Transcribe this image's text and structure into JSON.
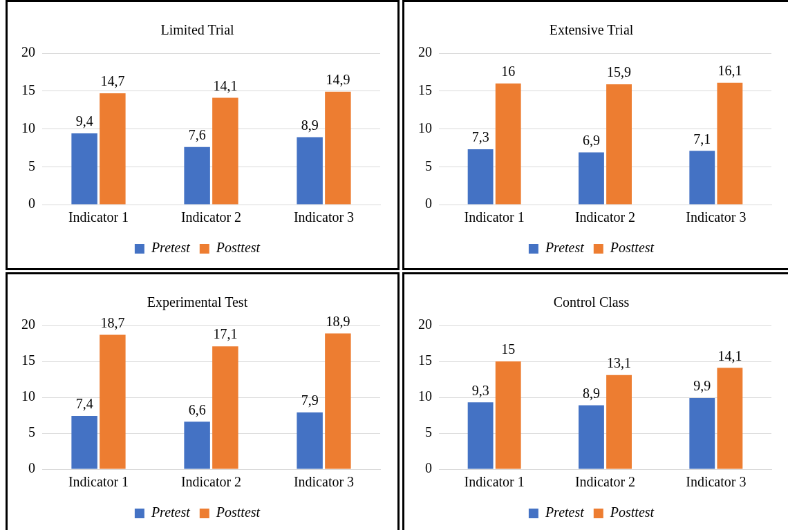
{
  "chart_data": [
    {
      "type": "bar",
      "title": "Limited Trial",
      "categories": [
        "Indicator 1",
        "Indicator 2",
        "Indicator 3"
      ],
      "ylim": [
        0,
        20
      ],
      "yticks": [
        0,
        5,
        10,
        15,
        20
      ],
      "grid": "y",
      "legend": "bottom",
      "series": [
        {
          "name": "Pretest",
          "color": "#4472c4",
          "values": [
            9.4,
            7.6,
            8.9
          ],
          "value_labels": [
            "9,4",
            "7,6",
            "8,9"
          ]
        },
        {
          "name": "Posttest",
          "color": "#ed7d31",
          "values": [
            14.7,
            14.1,
            14.9
          ],
          "value_labels": [
            "14,7",
            "14,1",
            "14,9"
          ]
        }
      ]
    },
    {
      "type": "bar",
      "title": "Extensive Trial",
      "categories": [
        "Indicator 1",
        "Indicator 2",
        "Indicator 3"
      ],
      "ylim": [
        0,
        20
      ],
      "yticks": [
        0,
        5,
        10,
        15,
        20
      ],
      "grid": "y",
      "legend": "bottom",
      "series": [
        {
          "name": "Pretest",
          "color": "#4472c4",
          "values": [
            7.3,
            6.9,
            7.1
          ],
          "value_labels": [
            "7,3",
            "6,9",
            "7,1"
          ]
        },
        {
          "name": "Posttest",
          "color": "#ed7d31",
          "values": [
            16,
            15.9,
            16.1
          ],
          "value_labels": [
            "16",
            "15,9",
            "16,1"
          ]
        }
      ]
    },
    {
      "type": "bar",
      "title": "Experimental Test",
      "categories": [
        "Indicator 1",
        "Indicator 2",
        "Indicator 3"
      ],
      "ylim": [
        0,
        20
      ],
      "yticks": [
        0,
        5,
        10,
        15,
        20
      ],
      "grid": "y",
      "legend": "bottom",
      "series": [
        {
          "name": "Pretest",
          "color": "#4472c4",
          "values": [
            7.4,
            6.6,
            7.9
          ],
          "value_labels": [
            "7,4",
            "6,6",
            "7,9"
          ]
        },
        {
          "name": "Posttest",
          "color": "#ed7d31",
          "values": [
            18.7,
            17.1,
            18.9
          ],
          "value_labels": [
            "18,7",
            "17,1",
            "18,9"
          ]
        }
      ]
    },
    {
      "type": "bar",
      "title": "Control Class",
      "categories": [
        "Indicator 1",
        "Indicator 2",
        "Indicator 3"
      ],
      "ylim": [
        0,
        20
      ],
      "yticks": [
        0,
        5,
        10,
        15,
        20
      ],
      "grid": "y",
      "legend": "bottom",
      "series": [
        {
          "name": "Pretest",
          "color": "#4472c4",
          "values": [
            9.3,
            8.9,
            9.9
          ],
          "value_labels": [
            "9,3",
            "8,9",
            "9,9"
          ]
        },
        {
          "name": "Posttest",
          "color": "#ed7d31",
          "values": [
            15,
            13.1,
            14.1
          ],
          "value_labels": [
            "15",
            "13,1",
            "14,1"
          ]
        }
      ]
    }
  ]
}
